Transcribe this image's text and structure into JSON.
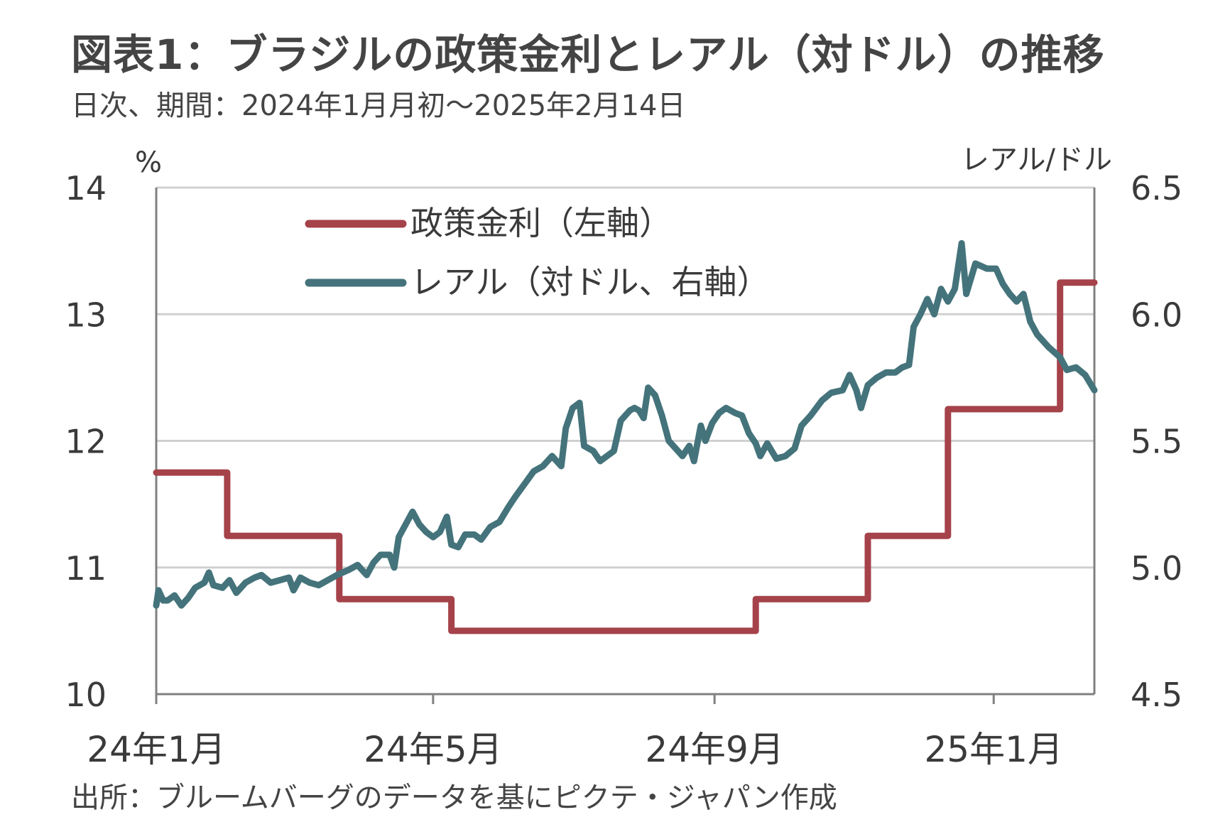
{
  "header": {
    "title": "図表1：ブラジルの政策金利とレアル（対ドル）の推移",
    "subtitle": "日次、期間：2024年1月月初～2025年2月14日"
  },
  "footer": {
    "source": "出所：ブルームバーグのデータを基にピクテ・ジャパン作成"
  },
  "colors": {
    "policy_rate": "#a5424a",
    "real": "#44737b",
    "grid": "#d0d0d0",
    "axis": "#808080"
  },
  "chart_data": {
    "type": "line",
    "x_start": "2024-01-01",
    "x_end": "2025-02-14",
    "x_tick_labels": [
      {
        "date": "2024-01-01",
        "label": "24年1月"
      },
      {
        "date": "2024-05-01",
        "label": "24年5月"
      },
      {
        "date": "2024-09-01",
        "label": "24年9月"
      },
      {
        "date": "2025-01-01",
        "label": "25年1月"
      }
    ],
    "y_left": {
      "unit": "%",
      "ylim": [
        10,
        14
      ],
      "ticks": [
        "10",
        "11",
        "12",
        "13",
        "14"
      ]
    },
    "y_right": {
      "unit": "レアル/ドル",
      "ylim": [
        4.5,
        6.5
      ],
      "ticks": [
        "4.5",
        "5.0",
        "5.5",
        "6.0",
        "6.5"
      ]
    },
    "grid": true,
    "legend": "top-left",
    "series": [
      {
        "name": "政策金利（左軸）",
        "axis": "left",
        "step": true,
        "points": [
          [
            "2024-01-01",
            11.75
          ],
          [
            "2024-02-01",
            11.25
          ],
          [
            "2024-03-21",
            10.75
          ],
          [
            "2024-05-09",
            10.5
          ],
          [
            "2024-09-19",
            10.75
          ],
          [
            "2024-11-07",
            11.25
          ],
          [
            "2024-12-12",
            12.25
          ],
          [
            "2025-01-30",
            13.25
          ],
          [
            "2025-02-14",
            13.25
          ]
        ]
      },
      {
        "name": "レアル（対ドル、右軸）",
        "axis": "right",
        "step": false,
        "points": [
          [
            "2024-01-01",
            4.85
          ],
          [
            "2024-01-02",
            4.91
          ],
          [
            "2024-01-04",
            4.87
          ],
          [
            "2024-01-06",
            4.87
          ],
          [
            "2024-01-09",
            4.89
          ],
          [
            "2024-01-12",
            4.85
          ],
          [
            "2024-01-15",
            4.88
          ],
          [
            "2024-01-18",
            4.92
          ],
          [
            "2024-01-22",
            4.94
          ],
          [
            "2024-01-24",
            4.98
          ],
          [
            "2024-01-26",
            4.93
          ],
          [
            "2024-01-30",
            4.92
          ],
          [
            "2024-02-02",
            4.95
          ],
          [
            "2024-02-05",
            4.9
          ],
          [
            "2024-02-09",
            4.94
          ],
          [
            "2024-02-13",
            4.96
          ],
          [
            "2024-02-16",
            4.97
          ],
          [
            "2024-02-20",
            4.94
          ],
          [
            "2024-02-24",
            4.95
          ],
          [
            "2024-02-28",
            4.96
          ],
          [
            "2024-03-01",
            4.91
          ],
          [
            "2024-03-04",
            4.96
          ],
          [
            "2024-03-08",
            4.94
          ],
          [
            "2024-03-12",
            4.93
          ],
          [
            "2024-03-16",
            4.95
          ],
          [
            "2024-03-20",
            4.97
          ],
          [
            "2024-03-25",
            4.99
          ],
          [
            "2024-03-29",
            5.01
          ],
          [
            "2024-04-02",
            4.97
          ],
          [
            "2024-04-05",
            5.02
          ],
          [
            "2024-04-08",
            5.05
          ],
          [
            "2024-04-12",
            5.05
          ],
          [
            "2024-04-14",
            5.0
          ],
          [
            "2024-04-16",
            5.12
          ],
          [
            "2024-04-19",
            5.17
          ],
          [
            "2024-04-22",
            5.22
          ],
          [
            "2024-04-25",
            5.17
          ],
          [
            "2024-04-28",
            5.14
          ],
          [
            "2024-05-01",
            5.12
          ],
          [
            "2024-05-04",
            5.14
          ],
          [
            "2024-05-07",
            5.2
          ],
          [
            "2024-05-09",
            5.09
          ],
          [
            "2024-05-12",
            5.08
          ],
          [
            "2024-05-15",
            5.13
          ],
          [
            "2024-05-19",
            5.13
          ],
          [
            "2024-05-22",
            5.11
          ],
          [
            "2024-05-26",
            5.16
          ],
          [
            "2024-05-30",
            5.18
          ],
          [
            "2024-06-03",
            5.24
          ],
          [
            "2024-06-06",
            5.28
          ],
          [
            "2024-06-10",
            5.33
          ],
          [
            "2024-06-14",
            5.38
          ],
          [
            "2024-06-18",
            5.4
          ],
          [
            "2024-06-22",
            5.44
          ],
          [
            "2024-06-26",
            5.4
          ],
          [
            "2024-06-28",
            5.55
          ],
          [
            "2024-07-01",
            5.63
          ],
          [
            "2024-07-04",
            5.65
          ],
          [
            "2024-07-06",
            5.48
          ],
          [
            "2024-07-10",
            5.46
          ],
          [
            "2024-07-13",
            5.42
          ],
          [
            "2024-07-16",
            5.44
          ],
          [
            "2024-07-19",
            5.46
          ],
          [
            "2024-07-22",
            5.58
          ],
          [
            "2024-07-26",
            5.62
          ],
          [
            "2024-07-28",
            5.63
          ],
          [
            "2024-07-30",
            5.62
          ],
          [
            "2024-08-01",
            5.59
          ],
          [
            "2024-08-03",
            5.71
          ],
          [
            "2024-08-06",
            5.68
          ],
          [
            "2024-08-09",
            5.6
          ],
          [
            "2024-08-12",
            5.5
          ],
          [
            "2024-08-15",
            5.47
          ],
          [
            "2024-08-18",
            5.44
          ],
          [
            "2024-08-21",
            5.48
          ],
          [
            "2024-08-23",
            5.42
          ],
          [
            "2024-08-26",
            5.56
          ],
          [
            "2024-08-28",
            5.5
          ],
          [
            "2024-08-31",
            5.57
          ],
          [
            "2024-09-03",
            5.61
          ],
          [
            "2024-09-06",
            5.63
          ],
          [
            "2024-09-10",
            5.61
          ],
          [
            "2024-09-13",
            5.6
          ],
          [
            "2024-09-16",
            5.53
          ],
          [
            "2024-09-19",
            5.49
          ],
          [
            "2024-09-21",
            5.44
          ],
          [
            "2024-09-24",
            5.49
          ],
          [
            "2024-09-28",
            5.43
          ],
          [
            "2024-10-02",
            5.44
          ],
          [
            "2024-10-06",
            5.47
          ],
          [
            "2024-10-09",
            5.56
          ],
          [
            "2024-10-13",
            5.6
          ],
          [
            "2024-10-18",
            5.66
          ],
          [
            "2024-10-22",
            5.69
          ],
          [
            "2024-10-27",
            5.7
          ],
          [
            "2024-10-30",
            5.76
          ],
          [
            "2024-11-02",
            5.7
          ],
          [
            "2024-11-04",
            5.63
          ],
          [
            "2024-11-07",
            5.72
          ],
          [
            "2024-11-11",
            5.75
          ],
          [
            "2024-11-15",
            5.77
          ],
          [
            "2024-11-19",
            5.77
          ],
          [
            "2024-11-22",
            5.79
          ],
          [
            "2024-11-25",
            5.8
          ],
          [
            "2024-11-27",
            5.95
          ],
          [
            "2024-11-30",
            6.0
          ],
          [
            "2024-12-03",
            6.06
          ],
          [
            "2024-12-06",
            6.0
          ],
          [
            "2024-12-09",
            6.1
          ],
          [
            "2024-12-12",
            6.05
          ],
          [
            "2024-12-15",
            6.1
          ],
          [
            "2024-12-18",
            6.28
          ],
          [
            "2024-12-20",
            6.08
          ],
          [
            "2024-12-24",
            6.2
          ],
          [
            "2024-12-29",
            6.18
          ],
          [
            "2025-01-02",
            6.18
          ],
          [
            "2025-01-05",
            6.12
          ],
          [
            "2025-01-08",
            6.08
          ],
          [
            "2025-01-11",
            6.05
          ],
          [
            "2025-01-14",
            6.08
          ],
          [
            "2025-01-17",
            5.97
          ],
          [
            "2025-01-20",
            5.92
          ],
          [
            "2025-01-25",
            5.87
          ],
          [
            "2025-01-30",
            5.83
          ],
          [
            "2025-02-02",
            5.78
          ],
          [
            "2025-02-06",
            5.79
          ],
          [
            "2025-02-10",
            5.76
          ],
          [
            "2025-02-14",
            5.7
          ]
        ]
      }
    ]
  }
}
